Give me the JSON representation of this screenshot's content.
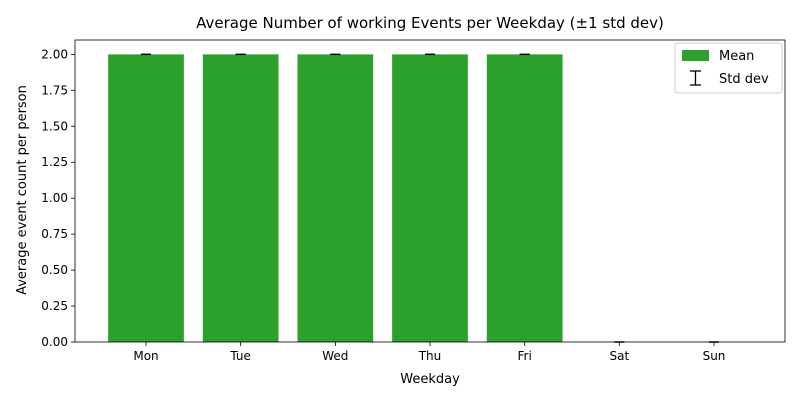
{
  "chart_data": {
    "type": "bar",
    "title": "Average Number of working Events per Weekday (±1 std dev)",
    "xlabel": "Weekday",
    "ylabel": "Average event count per person",
    "categories": [
      "Mon",
      "Tue",
      "Wed",
      "Thu",
      "Fri",
      "Sat",
      "Sun"
    ],
    "series": [
      {
        "name": "Mean",
        "values": [
          2.0,
          2.0,
          2.0,
          2.0,
          2.0,
          0.0,
          0.0
        ],
        "std": [
          0,
          0,
          0,
          0,
          0,
          0,
          0
        ]
      }
    ],
    "ylim": [
      0,
      2.1
    ],
    "yticks": [
      "0.00",
      "0.25",
      "0.50",
      "0.75",
      "1.00",
      "1.25",
      "1.50",
      "1.75",
      "2.00"
    ],
    "grid": false,
    "legend": {
      "position": "top-right",
      "entries": [
        "Mean",
        "Std dev"
      ]
    },
    "colors": {
      "bar": "#2ca02c",
      "errorbar": "#000000"
    }
  }
}
